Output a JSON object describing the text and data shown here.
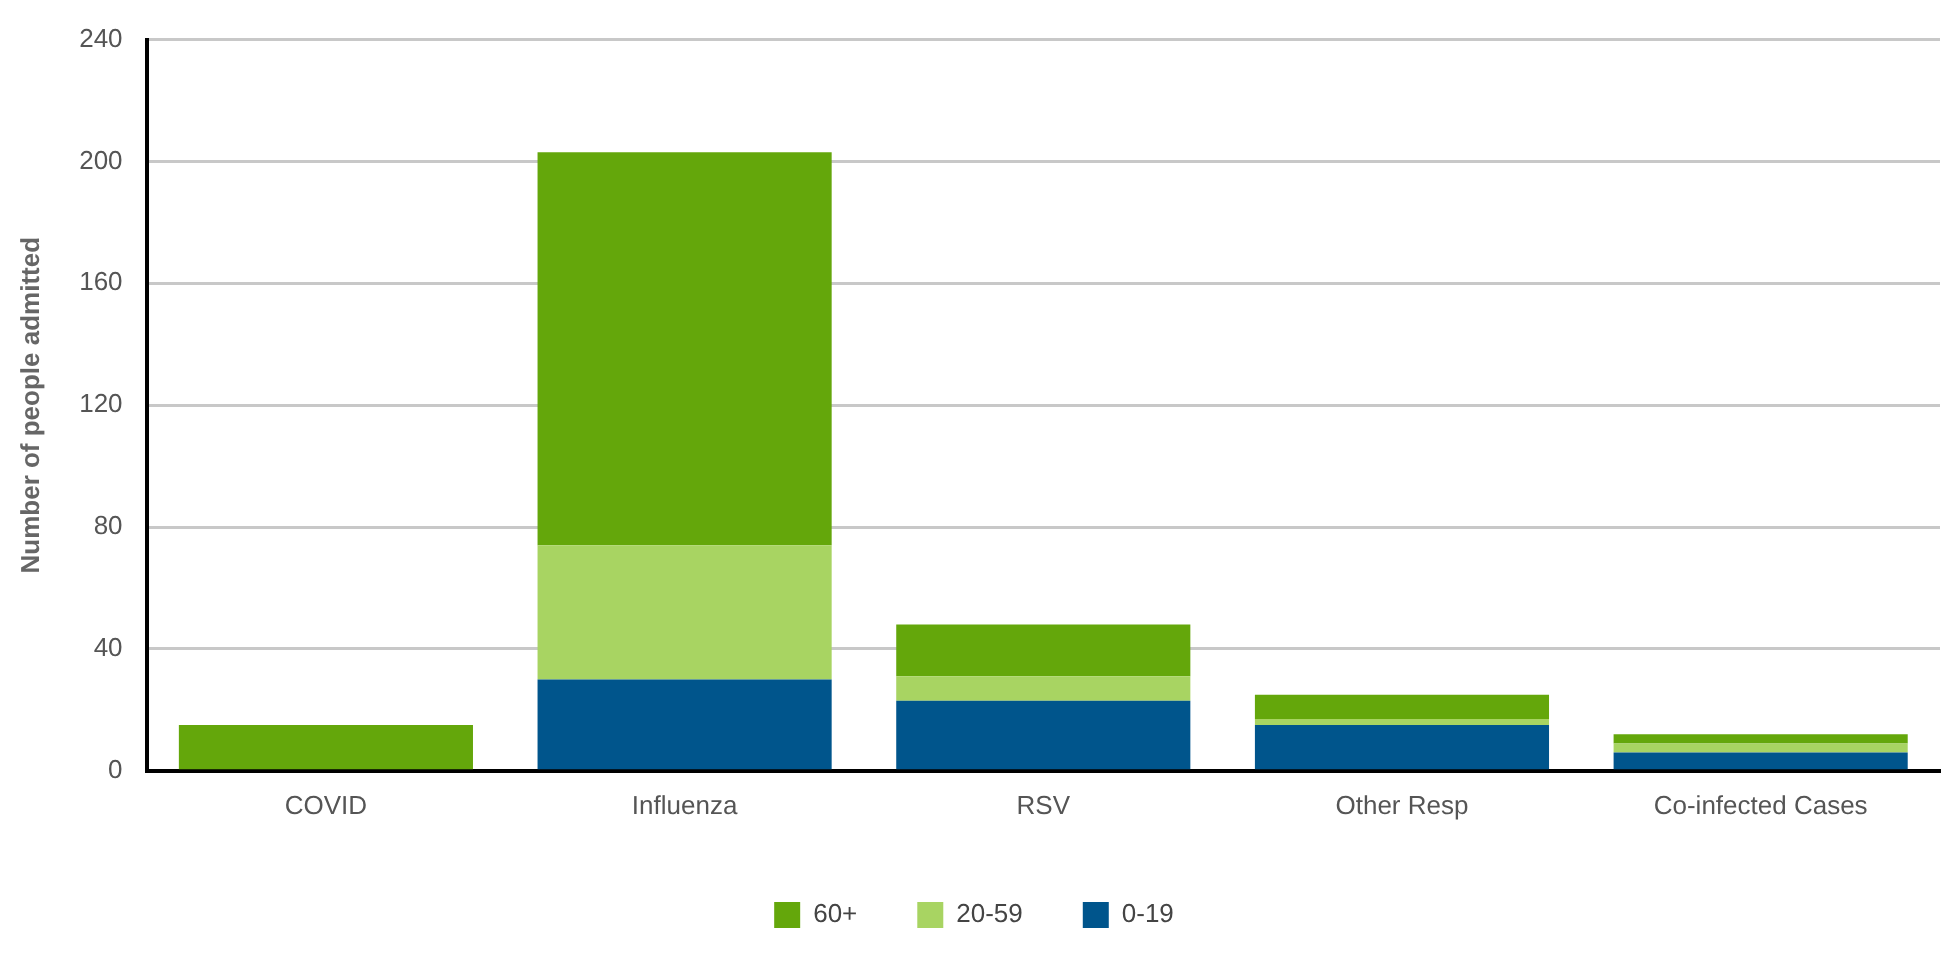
{
  "chart_data": {
    "type": "bar",
    "stacked": true,
    "ylabel": "Number of people admitted",
    "categories": [
      "COVID",
      "Influenza",
      "RSV",
      "Other Resp",
      "Co-infected Cases"
    ],
    "series": [
      {
        "name": "0-19",
        "color": "#00558c",
        "values": [
          0,
          30,
          23,
          15,
          6
        ]
      },
      {
        "name": "20-59",
        "color": "#a8d462",
        "values": [
          0,
          44,
          8,
          2,
          3
        ]
      },
      {
        "name": "60+",
        "color": "#64a70b",
        "values": [
          15,
          129,
          17,
          8,
          3
        ]
      }
    ],
    "ylim": [
      0,
      240
    ],
    "yticks": [
      0,
      40,
      80,
      120,
      160,
      200,
      240
    ],
    "grid": "y",
    "legend": "bottom"
  }
}
